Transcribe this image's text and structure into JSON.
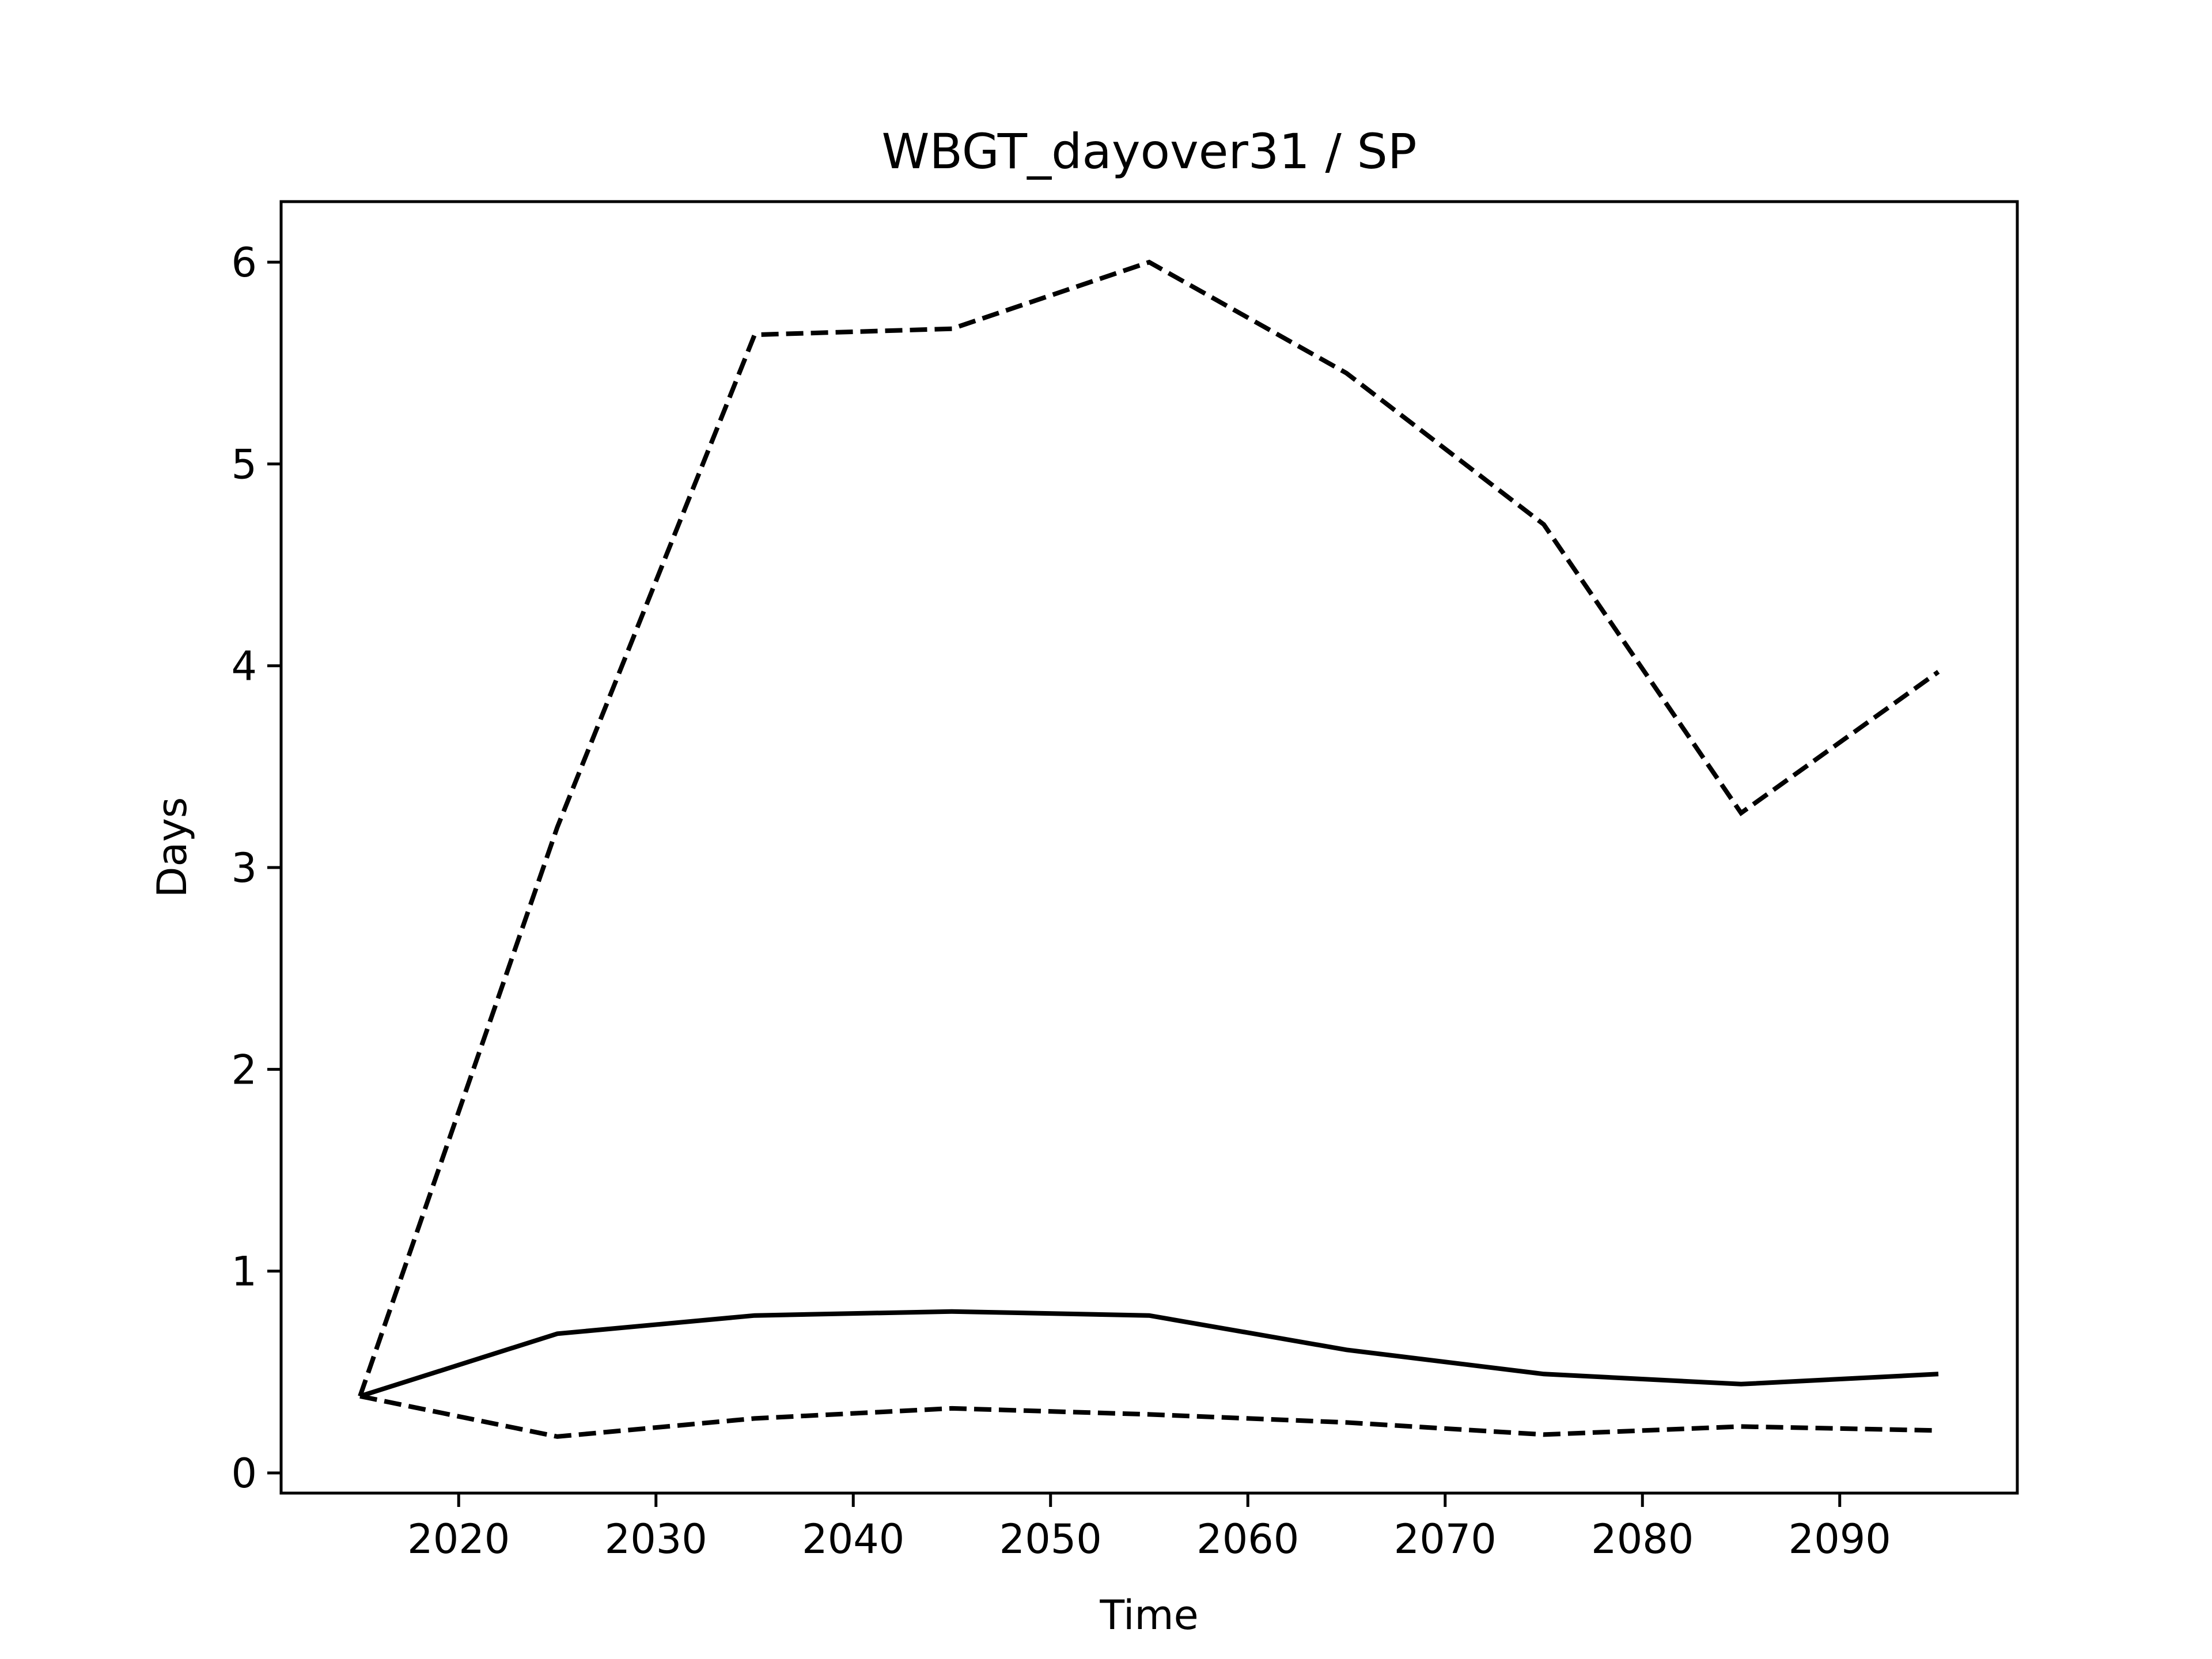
{
  "chart_data": {
    "type": "line",
    "title": "WBGT_dayover31 / SP",
    "xlabel": "Time",
    "ylabel": "Days",
    "xlim": [
      2011,
      2099
    ],
    "ylim": [
      -0.1,
      6.3
    ],
    "xticks": [
      2020,
      2030,
      2040,
      2050,
      2060,
      2070,
      2080,
      2090
    ],
    "yticks": [
      0,
      1,
      2,
      3,
      4,
      5,
      6
    ],
    "grid": false,
    "legend": "none",
    "x": [
      2015,
      2025,
      2035,
      2045,
      2055,
      2065,
      2075,
      2085,
      2095
    ],
    "series": [
      {
        "style": "solid",
        "color": "#000000",
        "values": [
          0.38,
          0.69,
          0.78,
          0.8,
          0.78,
          0.61,
          0.49,
          0.44,
          0.49
        ]
      },
      {
        "style": "dashed",
        "color": "#000000",
        "values": [
          0.38,
          3.2,
          5.64,
          5.67,
          6.0,
          5.45,
          4.7,
          3.27,
          3.97
        ]
      },
      {
        "style": "dashed",
        "color": "#000000",
        "values": [
          0.38,
          0.18,
          0.27,
          0.32,
          0.29,
          0.25,
          0.19,
          0.23,
          0.21
        ]
      }
    ]
  }
}
